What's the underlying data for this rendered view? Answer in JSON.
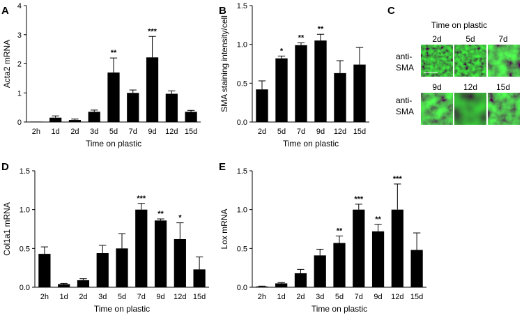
{
  "panels": [
    {
      "letter": "A",
      "ylabel": "Acta2 mRNA",
      "xlabel": "Time on plastic",
      "ylim": [
        0,
        4
      ],
      "yticks": [
        0,
        1,
        2,
        3,
        4
      ],
      "categories": [
        "2h",
        "1d",
        "2d",
        "3d",
        "5d",
        "7d",
        "9d",
        "12d",
        "15d"
      ],
      "values": [
        0.0,
        0.15,
        0.07,
        0.35,
        1.7,
        1.0,
        2.22,
        0.97,
        0.35
      ],
      "errors": [
        0.0,
        0.06,
        0.03,
        0.06,
        0.5,
        0.1,
        0.72,
        0.1,
        0.05
      ],
      "stars": [
        "",
        "",
        "",
        "",
        "**",
        "",
        "***",
        "",
        ""
      ]
    },
    {
      "letter": "B",
      "ylabel": "SMA staining intensity/cell",
      "xlabel": "Time on plastic",
      "ylim": [
        0,
        1.5
      ],
      "yticks": [
        "0.0",
        "0.5",
        "1.0",
        "1.5"
      ],
      "categories": [
        "2d",
        "5d",
        "7d",
        "9d",
        "12d",
        "15d"
      ],
      "values": [
        0.42,
        0.82,
        0.99,
        1.05,
        0.63,
        0.74
      ],
      "errors": [
        0.11,
        0.03,
        0.03,
        0.08,
        0.16,
        0.22
      ],
      "stars": [
        "",
        "*",
        "**",
        "**",
        "",
        ""
      ]
    },
    {
      "letter": "D",
      "ylabel": "Col1a1 mRNA",
      "xlabel": "Time on plastic",
      "ylim": [
        0,
        1.5
      ],
      "yticks": [
        "0.0",
        "0.5",
        "1.0",
        "1.5"
      ],
      "categories": [
        "2h",
        "1d",
        "2d",
        "3d",
        "5d",
        "7d",
        "9d",
        "12d",
        "15d"
      ],
      "values": [
        0.43,
        0.04,
        0.09,
        0.44,
        0.5,
        1.0,
        0.86,
        0.62,
        0.23
      ],
      "errors": [
        0.09,
        0.01,
        0.02,
        0.1,
        0.19,
        0.08,
        0.02,
        0.21,
        0.16
      ],
      "stars": [
        "",
        "",
        "",
        "",
        "",
        "***",
        "**",
        "*",
        ""
      ]
    },
    {
      "letter": "E",
      "ylabel": "Lox mRNA",
      "xlabel": "Time on plastic",
      "ylim": [
        0,
        1.5
      ],
      "yticks": [
        "0.0",
        "0.5",
        "1.0",
        "1.5"
      ],
      "categories": [
        "2h",
        "1d",
        "2d",
        "3d",
        "5d",
        "7d",
        "9d",
        "12d",
        "15d"
      ],
      "values": [
        0.01,
        0.05,
        0.18,
        0.41,
        0.57,
        1.0,
        0.72,
        1.0,
        0.48
      ],
      "errors": [
        0.005,
        0.01,
        0.05,
        0.08,
        0.09,
        0.07,
        0.09,
        0.33,
        0.22
      ],
      "stars": [
        "",
        "",
        "",
        "",
        "**",
        "***",
        "**",
        "***",
        ""
      ]
    }
  ],
  "micrograph": {
    "letter": "C",
    "title": "Time on plastic",
    "row_label_1": "anti-",
    "row_label_2": "SMA",
    "rows": [
      [
        "2d",
        "5d",
        "7d"
      ],
      [
        "9d",
        "12d",
        "15d"
      ]
    ],
    "colors": {
      "background": "#0b1a0b",
      "signal": "#2fbf3a"
    }
  }
}
